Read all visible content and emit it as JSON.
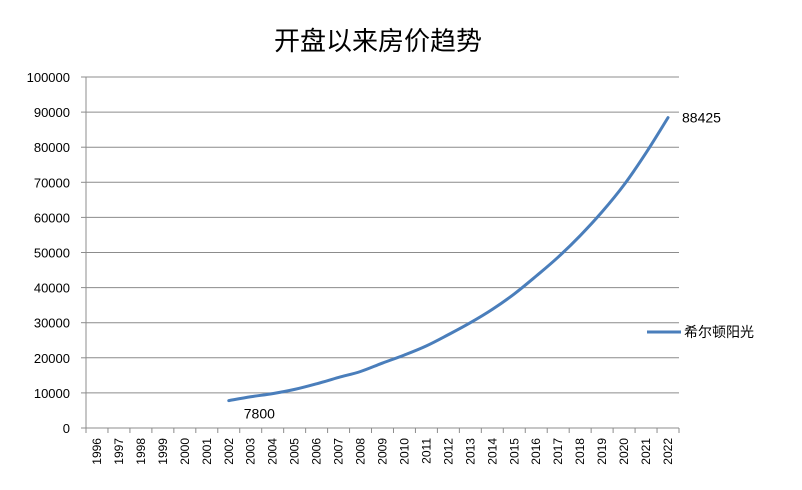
{
  "chart_data": {
    "type": "line",
    "title": "开盘以来房价趋势",
    "categories": [
      "1996",
      "1997",
      "1998",
      "1999",
      "2000",
      "2001",
      "2002",
      "2003",
      "2004",
      "2005",
      "2006",
      "2007",
      "2008",
      "2009",
      "2010",
      "2011",
      "2012",
      "2013",
      "2014",
      "2015",
      "2016",
      "2017",
      "2018",
      "2019",
      "2020",
      "2021",
      "2022"
    ],
    "series": [
      {
        "name": "希尔顿阳光",
        "color": "#4a7ebb",
        "values": [
          null,
          null,
          null,
          null,
          null,
          null,
          7800,
          8900,
          9800,
          11000,
          12600,
          14400,
          16100,
          18500,
          20800,
          23400,
          26600,
          30000,
          33800,
          38200,
          43300,
          48700,
          54800,
          61600,
          69300,
          78400,
          88425
        ]
      }
    ],
    "ylim": [
      0,
      100000
    ],
    "yticks": [
      0,
      10000,
      20000,
      30000,
      40000,
      50000,
      60000,
      70000,
      80000,
      90000,
      100000
    ],
    "grid": true,
    "legend_position": "right",
    "data_labels": [
      {
        "category": "2002",
        "text": "7800"
      },
      {
        "category": "2022",
        "text": "88425"
      }
    ]
  }
}
